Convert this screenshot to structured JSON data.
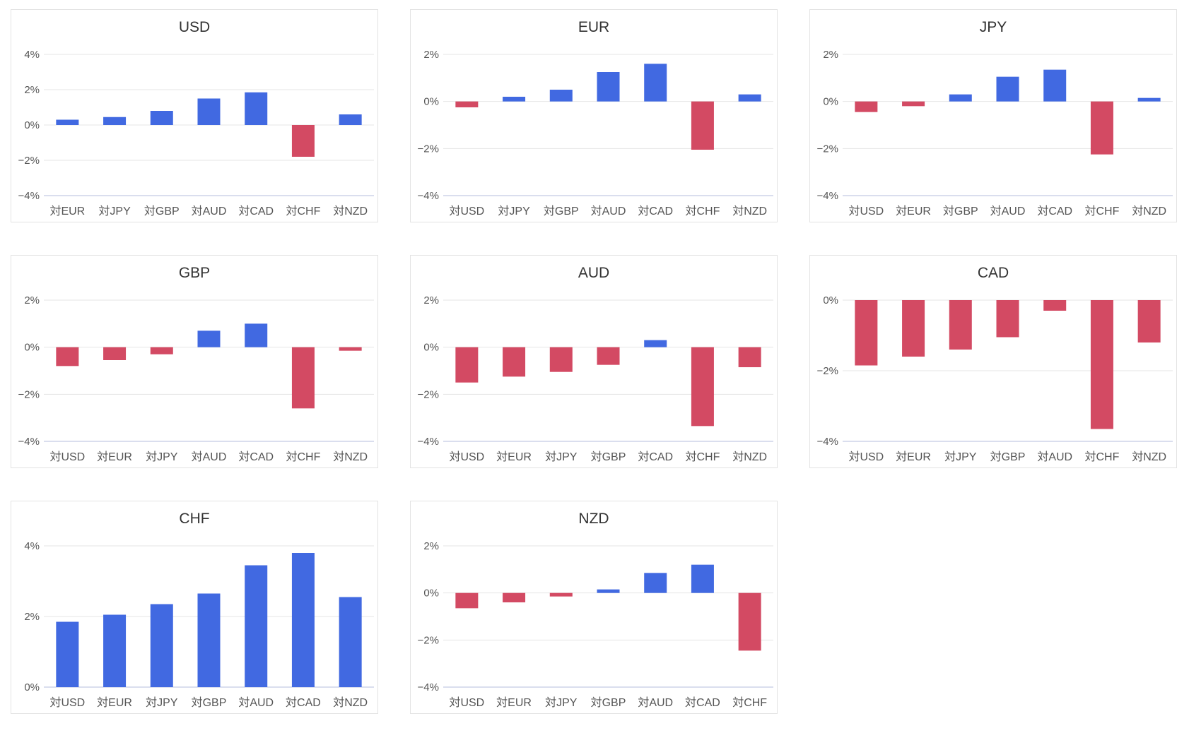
{
  "colors": {
    "positive": "#4169e1",
    "negative": "#d34a63",
    "grid": "#e4e4e4"
  },
  "chart_data": [
    {
      "type": "bar",
      "title": "USD",
      "categories": [
        "対EUR",
        "対JPY",
        "対GBP",
        "対AUD",
        "対CAD",
        "対CHF",
        "対NZD"
      ],
      "values": [
        0.3,
        0.45,
        0.8,
        1.5,
        1.85,
        -1.8,
        0.6
      ],
      "ylim": [
        -4,
        4
      ],
      "yticks": [
        4,
        2,
        0,
        -2,
        -4
      ],
      "ytick_labels": [
        "4%",
        "2%",
        "0%",
        "−2%",
        "−4%"
      ],
      "grid": true
    },
    {
      "type": "bar",
      "title": "EUR",
      "categories": [
        "対USD",
        "対JPY",
        "対GBP",
        "対AUD",
        "対CAD",
        "対CHF",
        "対NZD"
      ],
      "values": [
        -0.25,
        0.2,
        0.5,
        1.25,
        1.6,
        -2.05,
        0.3
      ],
      "ylim": [
        -4,
        2
      ],
      "yticks": [
        2,
        0,
        -2,
        -4
      ],
      "ytick_labels": [
        "2%",
        "0%",
        "−2%",
        "−4%"
      ],
      "grid": true
    },
    {
      "type": "bar",
      "title": "JPY",
      "categories": [
        "対USD",
        "対EUR",
        "対GBP",
        "対AUD",
        "対CAD",
        "対CHF",
        "対NZD"
      ],
      "values": [
        -0.45,
        -0.2,
        0.3,
        1.05,
        1.35,
        -2.25,
        0.15
      ],
      "ylim": [
        -4,
        2
      ],
      "yticks": [
        2,
        0,
        -2,
        -4
      ],
      "ytick_labels": [
        "2%",
        "0%",
        "−2%",
        "−4%"
      ],
      "grid": true
    },
    {
      "type": "bar",
      "title": "GBP",
      "categories": [
        "対USD",
        "対EUR",
        "対JPY",
        "対AUD",
        "対CAD",
        "対CHF",
        "対NZD"
      ],
      "values": [
        -0.8,
        -0.55,
        -0.3,
        0.7,
        1.0,
        -2.6,
        -0.15
      ],
      "ylim": [
        -4,
        2
      ],
      "yticks": [
        2,
        0,
        -2,
        -4
      ],
      "ytick_labels": [
        "2%",
        "0%",
        "−2%",
        "−4%"
      ],
      "grid": true
    },
    {
      "type": "bar",
      "title": "AUD",
      "categories": [
        "対USD",
        "対EUR",
        "対JPY",
        "対GBP",
        "対CAD",
        "対CHF",
        "対NZD"
      ],
      "values": [
        -1.5,
        -1.25,
        -1.05,
        -0.75,
        0.3,
        -3.35,
        -0.85
      ],
      "ylim": [
        -4,
        2
      ],
      "yticks": [
        2,
        0,
        -2,
        -4
      ],
      "ytick_labels": [
        "2%",
        "0%",
        "−2%",
        "−4%"
      ],
      "grid": true
    },
    {
      "type": "bar",
      "title": "CAD",
      "categories": [
        "対USD",
        "対EUR",
        "対JPY",
        "対GBP",
        "対AUD",
        "対CHF",
        "対NZD"
      ],
      "values": [
        -1.85,
        -1.6,
        -1.4,
        -1.05,
        -0.3,
        -3.65,
        -1.2
      ],
      "ylim": [
        -4,
        0
      ],
      "yticks": [
        0,
        -2,
        -4
      ],
      "ytick_labels": [
        "0%",
        "−2%",
        "−4%"
      ],
      "grid": true
    },
    {
      "type": "bar",
      "title": "CHF",
      "categories": [
        "対USD",
        "対EUR",
        "対JPY",
        "対GBP",
        "対AUD",
        "対CAD",
        "対NZD"
      ],
      "values": [
        1.85,
        2.05,
        2.35,
        2.65,
        3.45,
        3.8,
        2.55
      ],
      "ylim": [
        0,
        4
      ],
      "yticks": [
        4,
        2,
        0
      ],
      "ytick_labels": [
        "4%",
        "2%",
        "0%"
      ],
      "grid": true
    },
    {
      "type": "bar",
      "title": "NZD",
      "categories": [
        "対USD",
        "対EUR",
        "対JPY",
        "対GBP",
        "対AUD",
        "対CAD",
        "対CHF"
      ],
      "values": [
        -0.65,
        -0.4,
        -0.15,
        0.15,
        0.85,
        1.2,
        -2.45
      ],
      "ylim": [
        -4,
        2
      ],
      "yticks": [
        2,
        0,
        -2,
        -4
      ],
      "ytick_labels": [
        "2%",
        "0%",
        "−2%",
        "−4%"
      ],
      "grid": true
    }
  ]
}
